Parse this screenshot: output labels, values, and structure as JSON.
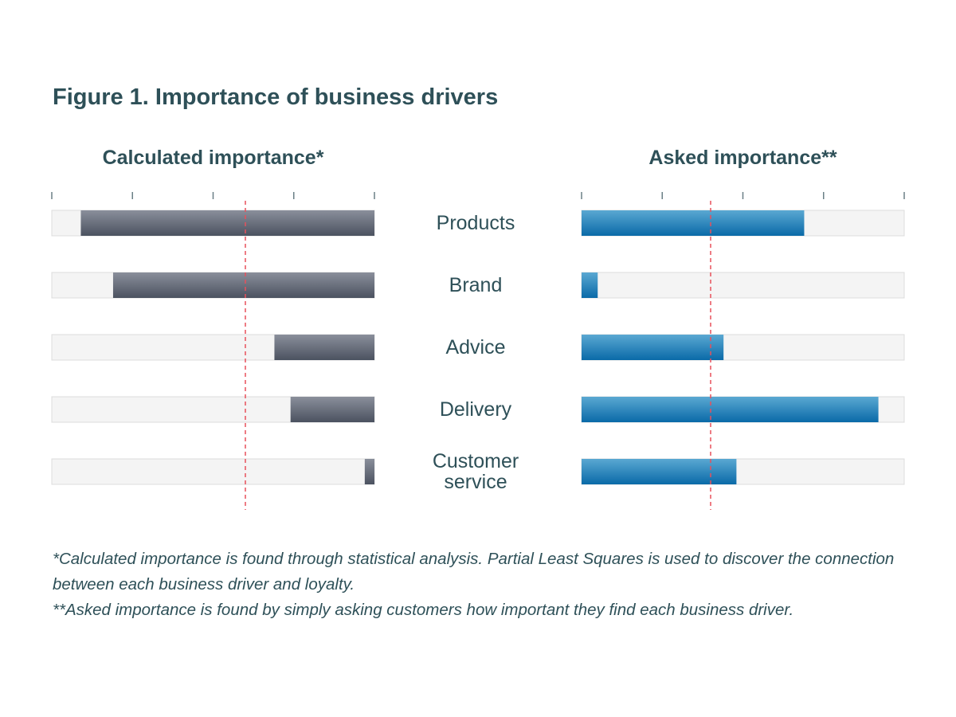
{
  "chart_data": [
    {
      "type": "bar",
      "orientation": "horizontal",
      "direction": "right-to-left",
      "title": "Calculated importance*",
      "categories": [
        "Products",
        "Brand",
        "Advice",
        "Delivery",
        "Customer service"
      ],
      "values": [
        91,
        81,
        31,
        26,
        3
      ],
      "xlim": [
        0,
        100
      ],
      "ticks": [
        0,
        25,
        50,
        75,
        100
      ],
      "reference_line": 40,
      "bar_color": "#6b7280",
      "track_color": "#f4f4f4",
      "reference_color": "#e8505b"
    },
    {
      "type": "bar",
      "orientation": "horizontal",
      "direction": "left-to-right",
      "title": "Asked importance**",
      "categories": [
        "Products",
        "Brand",
        "Advice",
        "Delivery",
        "Customer service"
      ],
      "values": [
        69,
        5,
        44,
        92,
        48
      ],
      "xlim": [
        0,
        100
      ],
      "ticks": [
        0,
        25,
        50,
        75,
        100
      ],
      "reference_line": 40,
      "bar_color": "#2a86bf",
      "track_color": "#f4f4f4",
      "reference_color": "#e8505b"
    }
  ],
  "figure": {
    "title": "Figure 1. Importance of business drivers",
    "left_subtitle": "Calculated importance*",
    "right_subtitle": "Asked importance**",
    "categories": [
      "Products",
      "Brand",
      "Advice",
      "Delivery",
      "Customer\nservice"
    ],
    "notes": [
      "*Calculated importance is found through statistical analysis. Partial Least Squares is used to discover the connection between each business driver and loyalty.",
      "**Asked importance is found by simply asking customers how important they find each business driver."
    ]
  }
}
